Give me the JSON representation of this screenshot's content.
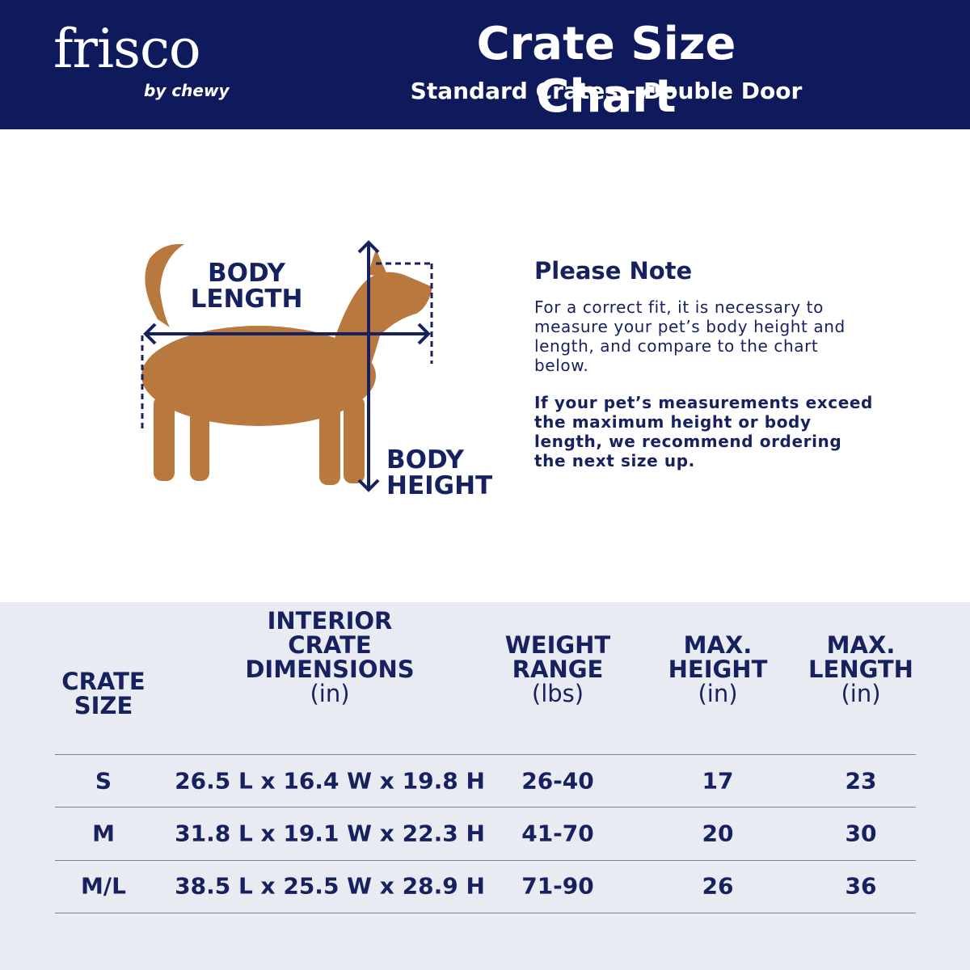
{
  "header": {
    "logo": "frisco",
    "logo_sub": "by chewy",
    "title": "Crate Size Chart",
    "subtitle": "Standard Crates - Double Door"
  },
  "diagram": {
    "length_label": [
      "BODY",
      "LENGTH"
    ],
    "height_label": [
      "BODY",
      "HEIGHT"
    ]
  },
  "note": {
    "title": "Please Note",
    "paragraphs": [
      "For a correct fit, it is necessary to measure your pet’s body height and length, and compare to the chart below.",
      "If your pet’s measurements exceed the maximum height or body length, we recommend ordering the next size up."
    ]
  },
  "table": {
    "columns": [
      {
        "lines": [
          "CRATE",
          "SIZE"
        ]
      },
      {
        "lines": [
          "INTERIOR",
          "CRATE",
          "DIMENSIONS"
        ],
        "unit": "(in)"
      },
      {
        "lines": [
          "WEIGHT",
          "RANGE"
        ],
        "unit": "(lbs)"
      },
      {
        "lines": [
          "MAX.",
          "HEIGHT"
        ],
        "unit": "(in)"
      },
      {
        "lines": [
          "MAX.",
          "LENGTH"
        ],
        "unit": "(in)"
      }
    ],
    "rows": [
      [
        "S",
        "26.5 L x 16.4 W x 19.8 H",
        "26-40",
        "17",
        "23"
      ],
      [
        "M",
        "31.8 L x 19.1 W x 22.3 H",
        "41-70",
        "20",
        "30"
      ],
      [
        "M/L",
        "38.5 L x 25.5 W x 28.9 H",
        "71-90",
        "26",
        "36"
      ]
    ]
  }
}
